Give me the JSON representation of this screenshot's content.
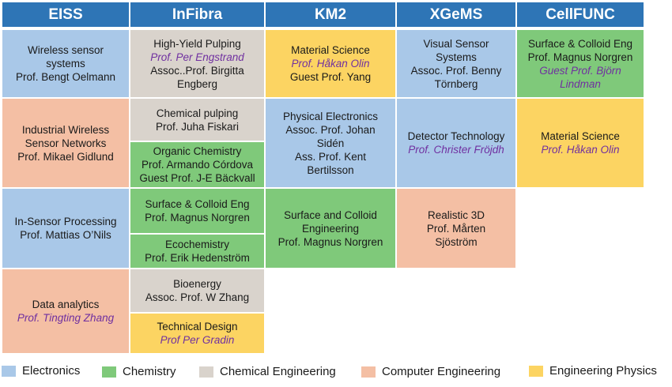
{
  "headers": [
    "EISS",
    "InFibra",
    "KM2",
    "XGeMS",
    "CellFUNC"
  ],
  "cells": {
    "eiss_1": {
      "l1": "Wireless sensor",
      "l2": "systems",
      "l3": "Prof. Bengt Oelmann"
    },
    "eiss_2": {
      "l1": "Industrial Wireless",
      "l2": "Sensor Networks",
      "l3": "Prof. Mikael Gidlund"
    },
    "eiss_3": {
      "l1": "In-Sensor Processing",
      "l2": "Prof. Mattias O’Nils"
    },
    "eiss_4": {
      "l1": "Data analytics",
      "l2": "Prof. Tingting Zhang"
    },
    "infibra_1": {
      "l1": "High-Yield Pulping",
      "l2": "Prof. Per Engstrand",
      "l3": "Assoc..Prof. Birgitta",
      "l4": "Engberg"
    },
    "infibra_2": {
      "l1": "Chemical pulping",
      "l2": "Prof. Juha Fiskari"
    },
    "infibra_3": {
      "l1": "Organic Chemistry",
      "l2": "Prof. Armando Córdova",
      "l3": "Guest Prof. J-E Bäckvall"
    },
    "infibra_4": {
      "l1": "Surface & Colloid Eng",
      "l2": "Prof. Magnus Norgren"
    },
    "infibra_5": {
      "l1": "Ecochemistry",
      "l2": "Prof. Erik Hedenström"
    },
    "infibra_6": {
      "l1": "Bioenergy",
      "l2": "Assoc. Prof. W Zhang"
    },
    "infibra_7": {
      "l1": "Technical Design",
      "l2": "Prof Per Gradin"
    },
    "km2_1": {
      "l1": "Material Science",
      "l2": "Prof. Håkan Olin",
      "l3": "Guest Prof. Yang"
    },
    "km2_2": {
      "l1": "Physical Electronics",
      "l2": "Assoc. Prof. Johan",
      "l3": "Sidén",
      "l4": "Ass. Prof. Kent",
      "l5": "Bertilsson"
    },
    "km2_3": {
      "l1": "Surface and Colloid",
      "l2": "Engineering",
      "l3": "Prof. Magnus Norgren"
    },
    "xgems_1": {
      "l1": "Visual Sensor",
      "l2": "Systems",
      "l3": "Assoc. Prof. Benny",
      "l4": "Törnberg"
    },
    "xgems_2": {
      "l1": "Detector Technology",
      "l2": "Prof. Christer Fröjdh"
    },
    "xgems_3": {
      "l1": "Realistic 3D",
      "l2": "Prof. Mårten",
      "l3": "Sjöström"
    },
    "cellfunc_1": {
      "l1": "Surface & Colloid Eng",
      "l2": "Prof. Magnus Norgren",
      "l3": "Guest Prof. Björn",
      "l4": "Lindman"
    },
    "cellfunc_2": {
      "l1": "Material Science",
      "l2": "Prof. Håkan Olin"
    }
  },
  "legend": [
    "Electronics",
    "Chemistry",
    "Chemical Engineering",
    "Computer Engineering",
    "Engineering Physics"
  ],
  "colors": {
    "header": "#2e75b6",
    "electronics": "#a9c8e8",
    "chemistry": "#7fc97a",
    "chemical_engineering": "#d9d3cc",
    "computer_engineering": "#f4bfa4",
    "engineering_physics": "#fcd462",
    "guest_name_text": "#7030a0"
  }
}
